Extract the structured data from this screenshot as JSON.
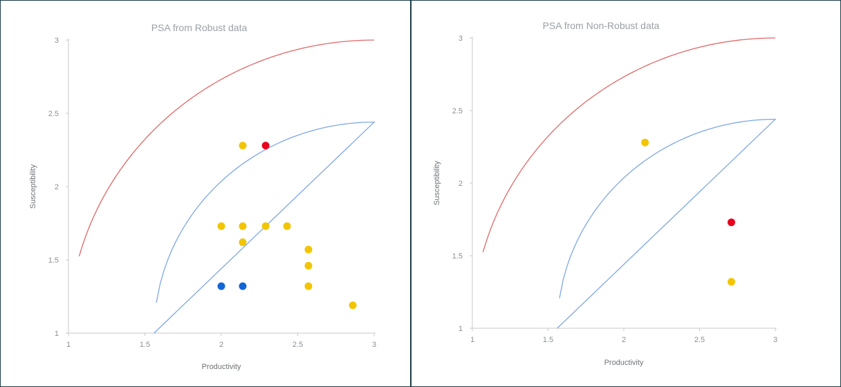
{
  "colors": {
    "red_curve": "#e06666",
    "blue_curve": "#7da7e3",
    "yellow": "#f2c500",
    "red_point": "#e8001c",
    "blue_point": "#1266d6",
    "axis": "#c8c8c8"
  },
  "chart_data": [
    {
      "type": "scatter",
      "title": "PSA from Robust data",
      "xlabel": "Productivity",
      "ylabel": "Susceptibility",
      "xlim": [
        1,
        3
      ],
      "ylim": [
        1,
        3
      ],
      "xticks": [
        "1",
        "1.5",
        "2",
        "2.5",
        "3"
      ],
      "yticks": [
        "1",
        "1.5",
        "2",
        "2.5",
        "3"
      ],
      "grid": false,
      "curves": [
        {
          "color": "red",
          "radius": 2,
          "x_start": 1.07
        },
        {
          "color": "blue",
          "radius": 1.44,
          "x_start": 1.0
        }
      ],
      "points": [
        {
          "x": 2.14,
          "y": 2.28,
          "color": "yellow"
        },
        {
          "x": 2.29,
          "y": 2.28,
          "color": "red"
        },
        {
          "x": 2.0,
          "y": 1.73,
          "color": "yellow"
        },
        {
          "x": 2.14,
          "y": 1.73,
          "color": "yellow"
        },
        {
          "x": 2.29,
          "y": 1.73,
          "color": "yellow"
        },
        {
          "x": 2.43,
          "y": 1.73,
          "color": "yellow"
        },
        {
          "x": 2.14,
          "y": 1.62,
          "color": "yellow"
        },
        {
          "x": 2.57,
          "y": 1.57,
          "color": "yellow"
        },
        {
          "x": 2.57,
          "y": 1.46,
          "color": "yellow"
        },
        {
          "x": 2.57,
          "y": 1.32,
          "color": "yellow"
        },
        {
          "x": 2.86,
          "y": 1.19,
          "color": "yellow"
        },
        {
          "x": 2.0,
          "y": 1.32,
          "color": "blue"
        },
        {
          "x": 2.14,
          "y": 1.32,
          "color": "blue"
        }
      ]
    },
    {
      "type": "scatter",
      "title": "PSA from Non-Robust data",
      "xlabel": "Productivity",
      "ylabel": "Susceptibility",
      "xlim": [
        1,
        3
      ],
      "ylim": [
        1,
        3
      ],
      "xticks": [
        "1",
        "1.5",
        "2",
        "2.5",
        "3"
      ],
      "yticks": [
        "1",
        "1.5",
        "2",
        "2.5",
        "3"
      ],
      "grid": false,
      "curves": [
        {
          "color": "red",
          "radius": 2,
          "x_start": 1.07
        },
        {
          "color": "blue",
          "radius": 1.44,
          "x_start": 1.0
        }
      ],
      "points": [
        {
          "x": 2.14,
          "y": 2.28,
          "color": "yellow"
        },
        {
          "x": 2.71,
          "y": 1.73,
          "color": "red"
        },
        {
          "x": 2.71,
          "y": 1.32,
          "color": "yellow"
        }
      ]
    }
  ]
}
